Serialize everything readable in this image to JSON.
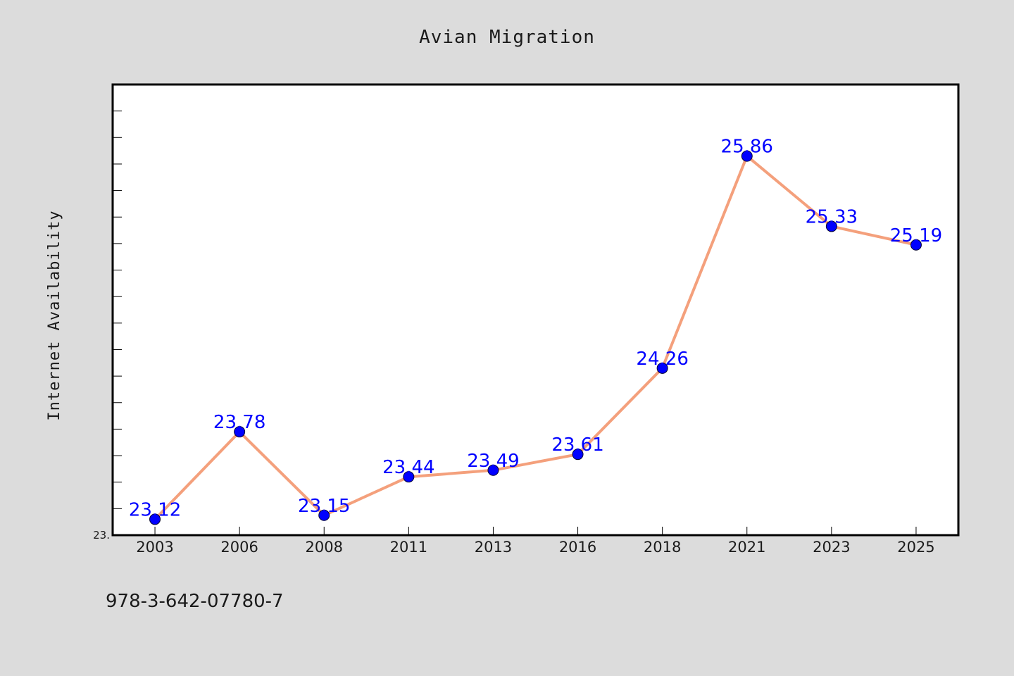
{
  "chart_data": {
    "type": "line",
    "title": "Avian Migration",
    "xlabel": "",
    "ylabel": "Internet Availability",
    "categories": [
      "2003",
      "2006",
      "2008",
      "2011",
      "2013",
      "2016",
      "2018",
      "2021",
      "2023",
      "2025"
    ],
    "series": [
      {
        "values": [
          23.12,
          23.78,
          23.15,
          23.44,
          23.49,
          23.61,
          24.26,
          25.86,
          25.33,
          25.19
        ],
        "labels": [
          "23.12",
          "23.78",
          "23.15",
          "23.44",
          "23.49",
          "23.61",
          "24.26",
          "25.86",
          "25.33",
          "25.19"
        ]
      }
    ],
    "ylim": [
      23.0,
      26.4
    ],
    "y_tick_labels": [
      "23."
    ],
    "grid": false,
    "legend": "none",
    "colors": {
      "page_background": "#dcdcdc",
      "plot_background": "#ffffff",
      "line": "#f4a07c",
      "marker": "#0000ff",
      "value_label": "#0000ff",
      "axis": "#000000"
    }
  },
  "footer": {
    "code": "978-3-642-07780-7"
  }
}
